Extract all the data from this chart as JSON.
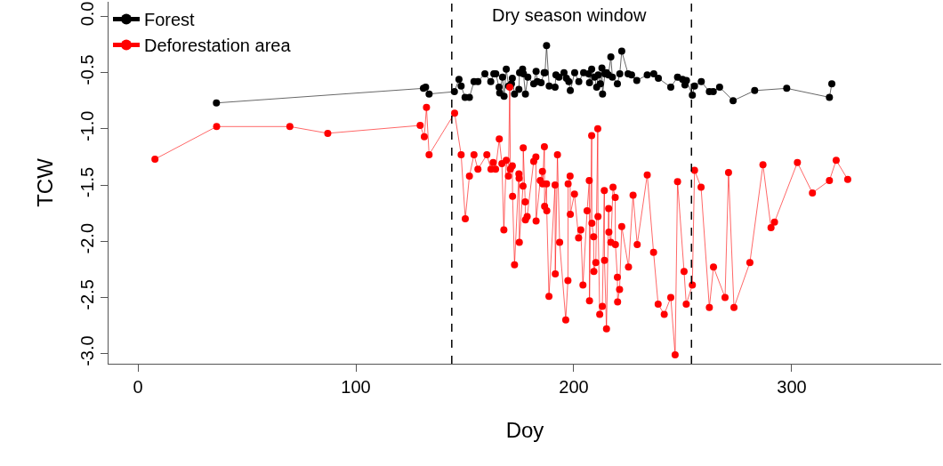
{
  "chart_data": {
    "type": "line",
    "xlabel": "Doy",
    "ylabel": "TCW",
    "xlim": [
      -13.5,
      368.6
    ],
    "ylim": [
      -3.09,
      0.13
    ],
    "xticks": [
      0,
      100,
      200,
      300
    ],
    "yticks": [
      {
        "value": 0,
        "label": "0.0"
      },
      {
        "value": -0.5,
        "label": "-0.5"
      },
      {
        "value": -1,
        "label": "-1.0"
      },
      {
        "value": -1.5,
        "label": "-1.5"
      },
      {
        "value": -2,
        "label": "-2.0"
      },
      {
        "value": -2.5,
        "label": "-2.5"
      },
      {
        "value": -3,
        "label": "-3.0"
      }
    ],
    "legend": "top left",
    "marker": "circle",
    "line_style": "solid",
    "ref_lines": [
      {
        "axis": "x",
        "value": 144,
        "label": null,
        "color": "#000000",
        "line_style": "dashed"
      },
      {
        "axis": "x",
        "value": 254,
        "label": null,
        "color": "#000000",
        "line_style": "dashed"
      }
    ],
    "annotations": [
      "Dry season window"
    ],
    "series": [
      {
        "name": "Forest",
        "color": "#000000",
        "x": [
          36,
          131,
          132,
          133.6,
          145.2,
          147.3,
          148.3,
          150.1,
          152.1,
          154.2,
          156.0,
          159.2,
          161.9,
          163.3,
          164.2,
          165.7,
          166.0,
          167.3,
          168.0,
          169.0,
          170.1,
          171.4,
          171.8,
          172.8,
          174.8,
          175.1,
          176.5,
          176.9,
          177.8,
          178.9,
          181.6,
          182.7,
          183.3,
          185.0,
          186.4,
          186.8,
          187.5,
          188.7,
          191.4,
          191.8,
          193.2,
          195.5,
          196.6,
          197.7,
          198.4,
          200.4,
          202.3,
          204.5,
          206.8,
          207.2,
          208.2,
          209.5,
          210.5,
          211.2,
          212.2,
          212.9,
          213.2,
          214.3,
          215.0,
          215.9,
          217.0,
          217.7,
          220.0,
          221.1,
          222.0,
          224.9,
          226.5,
          228.9,
          233.7,
          236.7,
          238.8,
          244.5,
          247.6,
          249.9,
          251.0,
          251.7,
          254.4,
          255.4,
          258.5,
          262.2,
          264.0,
          266.9,
          273.1,
          283.0,
          297.7,
          317.3,
          318.4
        ],
        "values": [
          -0.77,
          -0.64,
          -0.63,
          -0.69,
          -0.67,
          -0.56,
          -0.62,
          -0.72,
          -0.72,
          -0.58,
          -0.58,
          -0.51,
          -0.58,
          -0.51,
          -0.51,
          -0.63,
          -0.68,
          -0.54,
          -0.71,
          -0.47,
          -0.62,
          -0.6,
          -0.55,
          -0.69,
          -0.65,
          -0.5,
          -0.47,
          -0.51,
          -0.69,
          -0.54,
          -0.6,
          -0.49,
          -0.58,
          -0.59,
          -0.5,
          -0.5,
          -0.26,
          -0.62,
          -0.63,
          -0.52,
          -0.54,
          -0.5,
          -0.55,
          -0.58,
          -0.66,
          -0.5,
          -0.58,
          -0.5,
          -0.51,
          -0.59,
          -0.47,
          -0.54,
          -0.63,
          -0.52,
          -0.6,
          -0.46,
          -0.69,
          -0.51,
          -0.5,
          -0.52,
          -0.36,
          -0.54,
          -0.6,
          -0.51,
          -0.31,
          -0.51,
          -0.52,
          -0.57,
          -0.52,
          -0.51,
          -0.55,
          -0.63,
          -0.54,
          -0.56,
          -0.61,
          -0.57,
          -0.7,
          -0.62,
          -0.58,
          -0.67,
          -0.67,
          -0.63,
          -0.75,
          -0.66,
          -0.64,
          -0.72,
          -0.6
        ]
      },
      {
        "name": "Deforestation area",
        "color": "#ff0000",
        "x": [
          7.8,
          36.1,
          69.7,
          87.1,
          129.5,
          131.4,
          132.4,
          133.6,
          145.3,
          148.3,
          150.2,
          152.1,
          154.2,
          156.0,
          160.1,
          162.0,
          163.0,
          164.1,
          165.8,
          167.0,
          167.9,
          169.0,
          170.0,
          170.6,
          170.9,
          171.8,
          171.9,
          172.8,
          174.8,
          174.9,
          175.0,
          176.7,
          176.8,
          177.7,
          177.8,
          178.6,
          181.6,
          182.6,
          182.7,
          184.6,
          185.6,
          185.7,
          186.5,
          186.6,
          187.5,
          187.6,
          188.6,
          191.4,
          191.5,
          192.5,
          193.5,
          196.3,
          197.3,
          197.4,
          198.3,
          198.4,
          200.3,
          202.2,
          203.2,
          204.2,
          206.1,
          207.1,
          207.2,
          208.2,
          208.3,
          209.1,
          209.2,
          210.1,
          211.0,
          211.1,
          211.9,
          213.1,
          214.0,
          214.1,
          215.0,
          216.0,
          216.1,
          217.0,
          218.0,
          219.0,
          219.1,
          220.0,
          220.1,
          221.0,
          222.0,
          225.1,
          227.2,
          229.1,
          233.7,
          236.6,
          238.7,
          241.5,
          244.5,
          246.5,
          247.6,
          250.6,
          251.6,
          254.4,
          255.4,
          258.4,
          262.2,
          264.1,
          269.4,
          271.0,
          273.5,
          280.8,
          286.8,
          290.5,
          292.1,
          302.6,
          309.5,
          317.3,
          320.4,
          325.7
        ],
        "values": [
          -1.27,
          -0.98,
          -0.98,
          -1.04,
          -0.97,
          -1.07,
          -0.81,
          -1.23,
          -0.86,
          -1.23,
          -1.8,
          -1.42,
          -1.23,
          -1.36,
          -1.23,
          -1.36,
          -1.3,
          -1.36,
          -1.09,
          -1.31,
          -1.9,
          -1.28,
          -1.42,
          -0.63,
          -1.36,
          -1.33,
          -1.6,
          -2.21,
          -1.4,
          -1.44,
          -2.01,
          -1.51,
          -1.17,
          -1.65,
          -1.81,
          -1.78,
          -1.29,
          -1.25,
          -1.82,
          -1.46,
          -1.38,
          -1.49,
          -1.16,
          -1.69,
          -1.49,
          -1.73,
          -2.49,
          -1.5,
          -2.29,
          -1.23,
          -2.01,
          -2.7,
          -2.35,
          -1.49,
          -1.42,
          -1.76,
          -1.58,
          -1.97,
          -1.9,
          -2.39,
          -1.73,
          -1.46,
          -2.53,
          -1.06,
          -1.84,
          -1.96,
          -2.27,
          -2.19,
          -1.0,
          -1.78,
          -2.65,
          -2.58,
          -1.55,
          -2.17,
          -2.78,
          -1.71,
          -1.92,
          -2.01,
          -1.52,
          -1.61,
          -2.03,
          -2.32,
          -2.54,
          -2.43,
          -1.87,
          -2.23,
          -1.59,
          -2.03,
          -1.41,
          -2.1,
          -2.56,
          -2.65,
          -2.5,
          -3.01,
          -1.47,
          -2.27,
          -2.56,
          -2.39,
          -1.37,
          -1.52,
          -2.59,
          -2.23,
          -2.5,
          -1.39,
          -2.59,
          -2.19,
          -1.32,
          -1.88,
          -1.83,
          -1.3,
          -1.57,
          -1.46,
          -1.28,
          -1.45
        ]
      }
    ]
  }
}
